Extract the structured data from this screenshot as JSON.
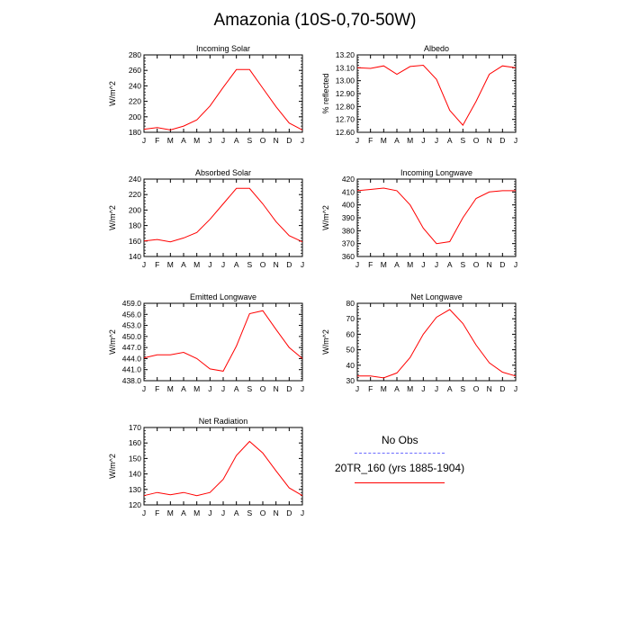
{
  "page": {
    "title": "Amazonia (10S-0,70-50W)"
  },
  "legend": {
    "obs_label": "No Obs",
    "run_label": "20TR_160 (yrs 1885-1904)",
    "obs_color": "#6a6aff",
    "run_color": "#ff0000"
  },
  "chart_data": [
    {
      "type": "line",
      "title": "Incoming Solar",
      "ylabel": "W/m^2",
      "ylim": [
        180,
        280
      ],
      "yticks": [
        "180",
        "200",
        "220",
        "240",
        "260",
        "280"
      ],
      "categories": [
        "J",
        "F",
        "M",
        "A",
        "M",
        "J",
        "J",
        "A",
        "S",
        "O",
        "N",
        "D",
        "J"
      ],
      "series": [
        {
          "name": "20TR_160 (yrs 1885-1904)",
          "values": [
            184,
            186,
            183,
            188,
            196,
            214,
            238,
            261,
            261,
            237,
            213,
            192,
            183
          ]
        }
      ]
    },
    {
      "type": "line",
      "title": "Albedo",
      "ylabel": "% reflected",
      "ylim": [
        12.6,
        13.2
      ],
      "yticks": [
        "12.60",
        "12.70",
        "12.80",
        "12.90",
        "13.00",
        "13.10",
        "13.20"
      ],
      "categories": [
        "J",
        "F",
        "M",
        "A",
        "M",
        "J",
        "J",
        "A",
        "S",
        "O",
        "N",
        "D",
        "J"
      ],
      "series": [
        {
          "name": "20TR_160 (yrs 1885-1904)",
          "values": [
            13.1,
            13.095,
            13.115,
            13.05,
            13.11,
            13.12,
            13.01,
            12.77,
            12.655,
            12.84,
            13.05,
            13.115,
            13.1
          ]
        }
      ]
    },
    {
      "type": "line",
      "title": "Absorbed Solar",
      "ylabel": "W/m^2",
      "ylim": [
        140,
        240
      ],
      "yticks": [
        "140",
        "160",
        "180",
        "200",
        "220",
        "240"
      ],
      "categories": [
        "J",
        "F",
        "M",
        "A",
        "M",
        "J",
        "J",
        "A",
        "S",
        "O",
        "N",
        "D",
        "J"
      ],
      "series": [
        {
          "name": "20TR_160 (yrs 1885-1904)",
          "values": [
            160,
            162,
            159,
            164,
            171,
            188,
            208,
            228,
            228,
            208,
            185,
            167,
            159
          ]
        }
      ]
    },
    {
      "type": "line",
      "title": "Incoming Longwave",
      "ylabel": "W/m^2",
      "ylim": [
        360,
        420
      ],
      "yticks": [
        "360",
        "370",
        "380",
        "390",
        "400",
        "410",
        "420"
      ],
      "categories": [
        "J",
        "F",
        "M",
        "A",
        "M",
        "J",
        "J",
        "A",
        "S",
        "O",
        "N",
        "D",
        "J"
      ],
      "series": [
        {
          "name": "20TR_160 (yrs 1885-1904)",
          "values": [
            411,
            412,
            413,
            411,
            400,
            382,
            370,
            371.5,
            390,
            405,
            410,
            411,
            411
          ]
        }
      ]
    },
    {
      "type": "line",
      "title": "Emitted Longwave",
      "ylabel": "W/m^2",
      "ylim": [
        438,
        459
      ],
      "yticks": [
        "438.0",
        "441.0",
        "444.0",
        "447.0",
        "450.0",
        "453.0",
        "456.0",
        "459.0"
      ],
      "categories": [
        "J",
        "F",
        "M",
        "A",
        "M",
        "J",
        "J",
        "A",
        "S",
        "O",
        "N",
        "D",
        "J"
      ],
      "series": [
        {
          "name": "20TR_160 (yrs 1885-1904)",
          "values": [
            444.2,
            445.0,
            445.0,
            445.7,
            444.0,
            441.2,
            440.6,
            447.4,
            456.2,
            457.0,
            451.9,
            447.0,
            444.0
          ]
        }
      ]
    },
    {
      "type": "line",
      "title": "Net Longwave",
      "ylabel": "W/m^2",
      "ylim": [
        30,
        80
      ],
      "yticks": [
        "30",
        "40",
        "50",
        "60",
        "70",
        "80"
      ],
      "categories": [
        "J",
        "F",
        "M",
        "A",
        "M",
        "J",
        "J",
        "A",
        "S",
        "O",
        "N",
        "D",
        "J"
      ],
      "series": [
        {
          "name": "20TR_160 (yrs 1885-1904)",
          "values": [
            33,
            33,
            31.8,
            35,
            45,
            60,
            71,
            76,
            67,
            53,
            41.5,
            35.5,
            33
          ]
        }
      ]
    },
    {
      "type": "line",
      "title": "Net Radiation",
      "ylabel": "W/m^2",
      "ylim": [
        120,
        170
      ],
      "yticks": [
        "120",
        "130",
        "140",
        "150",
        "160",
        "170"
      ],
      "categories": [
        "J",
        "F",
        "M",
        "A",
        "M",
        "J",
        "J",
        "A",
        "S",
        "O",
        "N",
        "D",
        "J"
      ],
      "series": [
        {
          "name": "20TR_160 (yrs 1885-1904)",
          "values": [
            126,
            128,
            126.5,
            128,
            126,
            128,
            136.5,
            152,
            161,
            153.5,
            142,
            131,
            126
          ]
        }
      ]
    }
  ]
}
